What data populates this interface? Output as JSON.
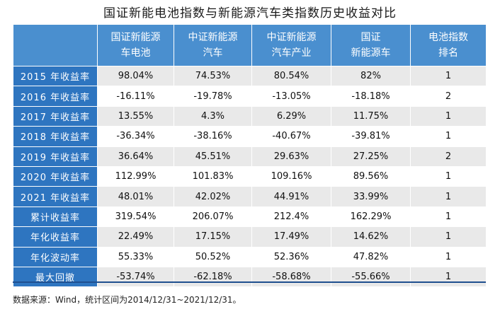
{
  "title": "国证新能电池指数与新能源汽车类指数历史收益对比",
  "table": {
    "headers": [
      {
        "line1": "",
        "line2": ""
      },
      {
        "line1": "国证新能源",
        "line2": "车电池"
      },
      {
        "line1": "中证新能源",
        "line2": "汽车"
      },
      {
        "line1": "中证新能源",
        "line2": "汽车产业"
      },
      {
        "line1": "国证",
        "line2": "新能源车"
      },
      {
        "line1": "电池指数",
        "line2": "排名"
      }
    ],
    "rows": [
      {
        "label": "2015 年收益率",
        "cells": [
          "98.04%",
          "74.53%",
          "80.54%",
          "82%",
          "1"
        ]
      },
      {
        "label": "2016 年收益率",
        "cells": [
          "-16.11%",
          "-19.78%",
          "-13.05%",
          "-18.18%",
          "2"
        ]
      },
      {
        "label": "2017 年收益率",
        "cells": [
          "13.55%",
          "4.3%",
          "6.29%",
          "11.75%",
          "1"
        ]
      },
      {
        "label": "2018 年收益率",
        "cells": [
          "-36.34%",
          "-38.16%",
          "-40.67%",
          "-39.81%",
          "1"
        ]
      },
      {
        "label": "2019 年收益率",
        "cells": [
          "36.64%",
          "45.51%",
          "29.63%",
          "27.25%",
          "2"
        ]
      },
      {
        "label": "2020 年收益率",
        "cells": [
          "112.99%",
          "101.83%",
          "109.16%",
          "89.56%",
          "1"
        ]
      },
      {
        "label": "2021 年收益率",
        "cells": [
          "48.01%",
          "42.02%",
          "44.91%",
          "33.99%",
          "1"
        ]
      },
      {
        "label": "累计收益率",
        "cells": [
          "319.54%",
          "206.07%",
          "212.4%",
          "162.29%",
          "1"
        ]
      },
      {
        "label": "年化收益率",
        "cells": [
          "22.49%",
          "17.15%",
          "17.49%",
          "14.62%",
          "1"
        ]
      },
      {
        "label": "年化波动率",
        "cells": [
          "55.33%",
          "50.52%",
          "52.36%",
          "47.82%",
          "1"
        ]
      },
      {
        "label": "最大回撤",
        "cells": [
          "-53.74%",
          "-62.18%",
          "-58.68%",
          "-55.66%",
          "1"
        ]
      }
    ]
  },
  "source": "数据来源：Wind，统计区间为2014/12/31~2021/12/31。",
  "colors": {
    "header_bg": "#4a8fcf",
    "row_header_bg": "#2e75c0",
    "stripe_bg": "#e9e9e9",
    "bottom_rule": "#1f4f8f"
  }
}
